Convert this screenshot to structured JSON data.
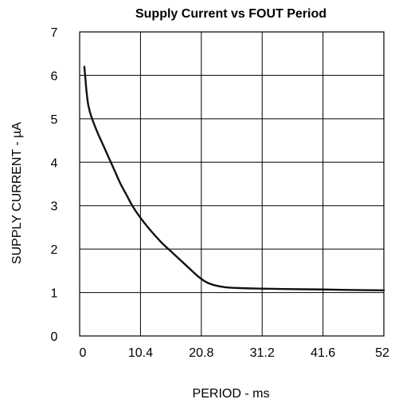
{
  "chart_data": {
    "type": "line",
    "title": "Supply Current vs FOUT Period",
    "xlabel": "PERIOD - ms",
    "ylabel": "SUPPLY CURRENT - µA",
    "xlim": [
      0,
      52
    ],
    "ylim": [
      0,
      7
    ],
    "xticks": [
      0,
      10.4,
      20.8,
      31.2,
      41.6,
      52
    ],
    "xtick_labels": [
      "0",
      "10.4",
      "20.8",
      "31.2",
      "41.6",
      "52"
    ],
    "yticks": [
      0,
      1,
      2,
      3,
      4,
      5,
      6,
      7
    ],
    "ytick_labels": [
      "0",
      "1",
      "2",
      "3",
      "4",
      "5",
      "6",
      "7"
    ],
    "grid": true,
    "series": [
      {
        "x": [
          0.8,
          1.0,
          1.2,
          1.5,
          2.0,
          3.0,
          4.0,
          5.0,
          6.0,
          7.0,
          8.0,
          9.0,
          10.4,
          12.0,
          14.0,
          16.0,
          18.0,
          20.0,
          21.5,
          23.0,
          25.0,
          28.0,
          31.2,
          35.0,
          41.6,
          46.0,
          52.0
        ],
        "y": [
          6.2,
          5.9,
          5.6,
          5.3,
          5.05,
          4.7,
          4.4,
          4.1,
          3.8,
          3.5,
          3.25,
          3.0,
          2.72,
          2.45,
          2.15,
          1.9,
          1.65,
          1.4,
          1.25,
          1.17,
          1.12,
          1.1,
          1.09,
          1.08,
          1.07,
          1.06,
          1.05
        ]
      }
    ]
  }
}
